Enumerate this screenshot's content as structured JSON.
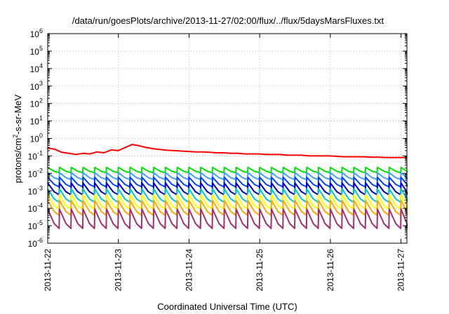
{
  "chart_data": {
    "type": "line",
    "title": "/data/run/goesPlots/archive/2013-11-27/02:00/flux/../flux/5daysMarsFluxes.txt",
    "ylabel": {
      "base": "protons/cm",
      "sup": "2",
      "rest": "-s-sr-MeV"
    },
    "xlabel": "Coordinated Universal Time (UTC)",
    "y_scale": "log",
    "ylim": [
      1e-06,
      1000000.0
    ],
    "y_ticks": [
      {
        "value": 1e-06,
        "exp": "-6"
      },
      {
        "value": 1e-05,
        "exp": "-5"
      },
      {
        "value": 0.0001,
        "exp": "-4"
      },
      {
        "value": 0.001,
        "exp": "-3"
      },
      {
        "value": 0.01,
        "exp": "-2"
      },
      {
        "value": 0.1,
        "exp": "-1"
      },
      {
        "value": 1,
        "exp": "0"
      },
      {
        "value": 10,
        "exp": "1"
      },
      {
        "value": 100,
        "exp": "2"
      },
      {
        "value": 1000,
        "exp": "3"
      },
      {
        "value": 10000,
        "exp": "4"
      },
      {
        "value": 100000,
        "exp": "5"
      },
      {
        "value": 1000000,
        "exp": "6"
      }
    ],
    "y_tick_base": "10",
    "xlim": [
      "2013-11-22",
      "2013-11-27T02:00"
    ],
    "x_ticks": [
      "2013-11-22",
      "2013-11-23",
      "2013-11-24",
      "2013-11-25",
      "2013-11-26",
      "2013-11-27"
    ],
    "grid": true,
    "legend": "none",
    "series": [
      {
        "color": "#ff0000",
        "values": [
          0.28,
          0.24,
          0.16,
          0.14,
          0.12,
          0.14,
          0.13,
          0.17,
          0.15,
          0.22,
          0.2,
          0.3,
          0.45,
          0.38,
          0.3,
          0.26,
          0.23,
          0.21,
          0.2,
          0.19,
          0.18,
          0.17,
          0.17,
          0.16,
          0.15,
          0.15,
          0.14,
          0.14,
          0.13,
          0.13,
          0.13,
          0.12,
          0.12,
          0.12,
          0.11,
          0.11,
          0.11,
          0.1,
          0.1,
          0.1,
          0.1,
          0.095,
          0.09,
          0.09,
          0.09,
          0.088,
          0.085,
          0.085,
          0.08,
          0.08,
          0.08,
          0.08
        ]
      },
      {
        "color": "#00e000",
        "peak": 0.022,
        "trough": 0.011
      },
      {
        "color": "#40a0ff",
        "peak": 0.011,
        "trough": 0.0045
      },
      {
        "color": "#0040ff",
        "peak": 0.006,
        "trough": 0.0017
      },
      {
        "color": "#0000c0",
        "peak": 0.0028,
        "trough": 0.0006
      },
      {
        "color": "#00c8c8",
        "peak": 0.0013,
        "trough": 0.00022
      },
      {
        "color": "#ffff00",
        "peak": 0.0006,
        "trough": 9e-05
      },
      {
        "color": "#ffa500",
        "peak": 0.00028,
        "trough": 4e-05
      },
      {
        "color": "#a03070",
        "peak": 9e-05,
        "trough": 7e-06
      }
    ],
    "sawtooth_period_hours": 4
  }
}
